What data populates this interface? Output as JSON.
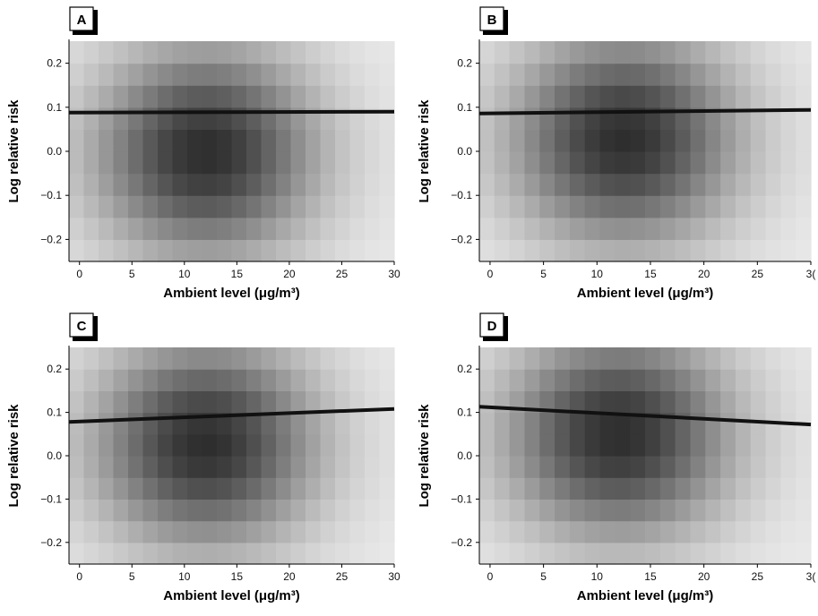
{
  "chart_data": [
    {
      "type": "heatmap",
      "panel_label": "A",
      "xlabel": "Ambient level (μg/m³)",
      "ylabel": "Log relative risk",
      "xlim": [
        -1,
        30
      ],
      "ylim": [
        -0.25,
        0.25
      ],
      "x_ticks": [
        "0",
        "5",
        "10",
        "15",
        "20",
        "25",
        "30"
      ],
      "y_ticks": [
        "−0.2",
        "−0.1",
        "0.0",
        "0.1",
        "0.2"
      ],
      "density_center": {
        "x": 12,
        "y": 0.0
      },
      "fit_line": {
        "x": [
          -1,
          30
        ],
        "y": [
          0.088,
          0.09
        ]
      }
    },
    {
      "type": "heatmap",
      "panel_label": "B",
      "xlabel": "Ambient level (μg/m³)",
      "ylabel": "Log relative risk",
      "xlim": [
        -1,
        30
      ],
      "ylim": [
        -0.25,
        0.25
      ],
      "x_ticks": [
        "0",
        "5",
        "10",
        "15",
        "20",
        "25",
        "3("
      ],
      "y_ticks": [
        "−0.2",
        "−0.1",
        "0.0",
        "0.1",
        "0.2"
      ],
      "density_center": {
        "x": 12.5,
        "y": 0.03
      },
      "fit_line": {
        "x": [
          -1,
          30
        ],
        "y": [
          0.086,
          0.094
        ]
      }
    },
    {
      "type": "heatmap",
      "panel_label": "C",
      "xlabel": "Ambient level (μg/m³)",
      "ylabel": "Log relative risk",
      "xlim": [
        -1,
        30
      ],
      "ylim": [
        -0.25,
        0.25
      ],
      "x_ticks": [
        "0",
        "5",
        "10",
        "15",
        "20",
        "25",
        "30"
      ],
      "y_ticks": [
        "−0.2",
        "−0.1",
        "0.0",
        "0.1",
        "0.2"
      ],
      "density_center": {
        "x": 12,
        "y": 0.03
      },
      "fit_line": {
        "x": [
          -1,
          30
        ],
        "y": [
          0.078,
          0.108
        ]
      }
    },
    {
      "type": "heatmap",
      "panel_label": "D",
      "xlabel": "Ambient level (μg/m³)",
      "ylabel": "Log relative risk",
      "xlim": [
        -1,
        30
      ],
      "ylim": [
        -0.25,
        0.25
      ],
      "x_ticks": [
        "0",
        "5",
        "10",
        "15",
        "20",
        "25",
        "3("
      ],
      "y_ticks": [
        "−0.2",
        "−0.1",
        "0.0",
        "0.1",
        "0.2"
      ],
      "density_center": {
        "x": 12,
        "y": 0.05
      },
      "fit_line": {
        "x": [
          -1,
          30
        ],
        "y": [
          0.113,
          0.072
        ]
      }
    }
  ]
}
